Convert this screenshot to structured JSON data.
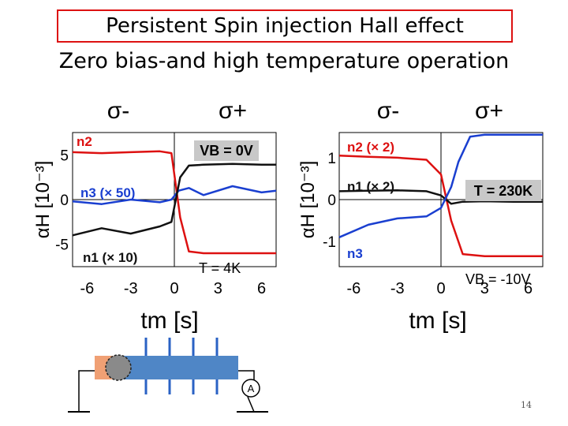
{
  "title": "Persistent Spin injection Hall effect",
  "subtitle": "Zero bias-and high temperature operation",
  "page_number": "14",
  "chart_data": [
    {
      "type": "line",
      "header_labels": [
        "σ-",
        "σ+"
      ],
      "ylabel": "αH [10⁻³]",
      "y_ticks": [
        "5",
        "0",
        "-5"
      ],
      "x_ticks": [
        "-6",
        "-3",
        "0",
        "3",
        "6"
      ],
      "xlabel": "tm [s]",
      "xlim": [
        -7,
        7
      ],
      "ylim": [
        -7.5,
        7.5
      ],
      "annotations": [
        "VB = 0V",
        "T = 4K"
      ],
      "series": [
        {
          "name": "n2",
          "color": "#dd1111",
          "x": [
            -7,
            -5,
            -3,
            -1,
            -0.2,
            0.4,
            1,
            2,
            4,
            6,
            7
          ],
          "y": [
            5.3,
            5.2,
            5.3,
            5.4,
            5.2,
            -2,
            -5.8,
            -6,
            -6,
            -6,
            -6
          ]
        },
        {
          "name": "n3 (× 50)",
          "color": "#1a3fd0",
          "x": [
            -7,
            -5,
            -3,
            -1,
            -0.2,
            0.3,
            1,
            2,
            4,
            6,
            7
          ],
          "y": [
            -0.2,
            -0.5,
            0,
            -0.3,
            0,
            1,
            1.3,
            0.5,
            1.5,
            0.8,
            1
          ]
        },
        {
          "name": "n1 (× 10)",
          "color": "#111111",
          "x": [
            -7,
            -5,
            -3,
            -1,
            -0.2,
            0.4,
            1,
            2,
            4,
            6,
            7
          ],
          "y": [
            -4,
            -3.2,
            -3.8,
            -3,
            -2.5,
            2.5,
            3.8,
            3.9,
            4,
            3.9,
            3.9
          ]
        }
      ]
    },
    {
      "type": "line",
      "header_labels": [
        "σ-",
        "σ+"
      ],
      "ylabel": "αH [10⁻³]",
      "y_ticks": [
        "1",
        "0",
        "-1"
      ],
      "x_ticks": [
        "-6",
        "-3",
        "0",
        "3",
        "6"
      ],
      "xlabel": "tm [s]",
      "xlim": [
        -7,
        7
      ],
      "ylim": [
        -1.6,
        1.6
      ],
      "annotations": [
        "T = 230K",
        "VB = -10V"
      ],
      "series": [
        {
          "name": "n2 (× 2)",
          "color": "#dd1111",
          "x": [
            -7,
            -5,
            -3,
            -1,
            0,
            0.7,
            1.5,
            3,
            5,
            7
          ],
          "y": [
            1.05,
            1.02,
            1.0,
            0.95,
            0.6,
            -0.5,
            -1.3,
            -1.35,
            -1.35,
            -1.35
          ]
        },
        {
          "name": "n1 (× 2)",
          "color": "#111111",
          "x": [
            -7,
            -5,
            -3,
            -1,
            0,
            0.7,
            1.5,
            3,
            5,
            7
          ],
          "y": [
            0.2,
            0.21,
            0.22,
            0.2,
            0.1,
            -0.1,
            -0.05,
            -0.04,
            -0.05,
            -0.05
          ]
        },
        {
          "name": "n3",
          "color": "#1a3fd0",
          "x": [
            -7,
            -5,
            -3,
            -1,
            0,
            0.7,
            1.2,
            2,
            3,
            5,
            7
          ],
          "y": [
            -0.9,
            -0.6,
            -0.45,
            -0.4,
            -0.2,
            0.3,
            0.9,
            1.5,
            1.55,
            1.55,
            1.55
          ]
        }
      ]
    }
  ]
}
